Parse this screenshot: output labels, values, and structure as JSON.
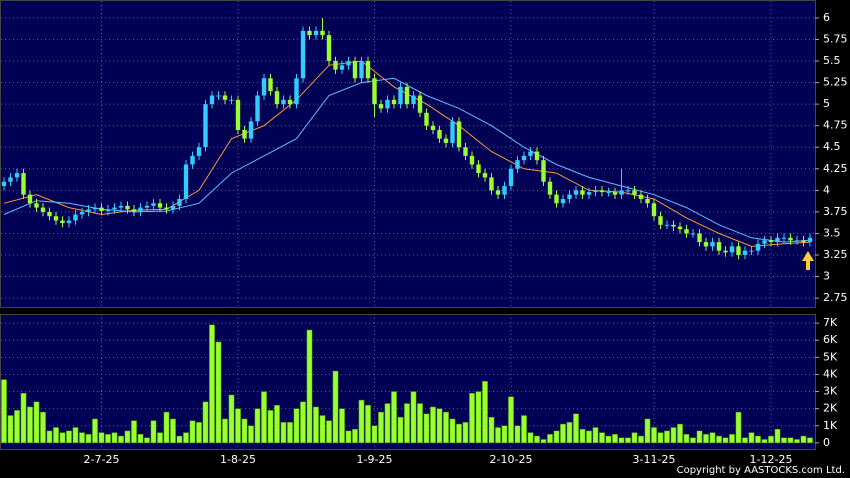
{
  "chart_data": [
    {
      "type": "candlestick",
      "up_color": "#33ccff",
      "down_color": "#99ff33",
      "grid": true,
      "ylim": [
        2.67,
        6.15
      ],
      "yticks": [
        2.75,
        3,
        3.25,
        3.5,
        3.75,
        4,
        4.25,
        4.5,
        4.75,
        5,
        5.25,
        5.5,
        5.75,
        6
      ],
      "open": [
        4.05,
        4.1,
        4.15,
        4.2,
        3.95,
        3.85,
        3.8,
        3.75,
        3.7,
        3.65,
        3.62,
        3.65,
        3.72,
        3.75,
        3.78,
        3.8,
        3.76,
        3.78,
        3.8,
        3.82,
        3.78,
        3.75,
        3.8,
        3.82,
        3.85,
        3.8,
        3.78,
        3.82,
        3.9,
        4.3,
        4.4,
        4.5,
        5.0,
        5.1,
        5.1,
        5.05,
        5.05,
        4.7,
        4.6,
        4.8,
        5.1,
        5.3,
        5.15,
        5.0,
        5.05,
        5.0,
        5.3,
        5.85,
        5.8,
        5.85,
        5.8,
        5.5,
        5.4,
        5.45,
        5.5,
        5.3,
        5.5,
        5.3,
        5.0,
        4.95,
        5.05,
        5.0,
        5.2,
        5.0,
        5.1,
        4.9,
        4.75,
        4.7,
        4.6,
        4.55,
        4.8,
        4.5,
        4.4,
        4.3,
        4.2,
        4.15,
        4.0,
        3.95,
        4.05,
        4.25,
        4.35,
        4.4,
        4.45,
        4.35,
        4.1,
        3.95,
        3.85,
        3.9,
        3.95,
        4.0,
        3.95,
        3.98,
        4.0,
        3.98,
        3.98,
        3.95,
        4.0,
        4.0,
        3.95,
        3.9,
        3.85,
        3.7,
        3.6,
        3.6,
        3.58,
        3.55,
        3.5,
        3.5,
        3.4,
        3.35,
        3.4,
        3.3,
        3.28,
        3.35,
        3.25,
        3.3,
        3.3,
        3.38,
        3.42,
        3.4,
        3.45,
        3.45,
        3.42,
        3.42,
        3.4
      ],
      "high": [
        4.15,
        4.2,
        4.25,
        4.25,
        4.0,
        3.9,
        3.85,
        3.8,
        3.75,
        3.7,
        3.7,
        3.77,
        3.8,
        3.83,
        3.85,
        3.85,
        3.83,
        3.85,
        3.87,
        3.87,
        3.83,
        3.85,
        3.87,
        3.9,
        3.9,
        3.85,
        3.87,
        3.95,
        4.35,
        4.45,
        4.55,
        5.05,
        5.15,
        5.15,
        5.15,
        5.1,
        5.1,
        4.75,
        4.85,
        5.15,
        5.35,
        5.35,
        5.2,
        5.1,
        5.1,
        5.35,
        5.9,
        5.9,
        5.9,
        6.0,
        5.85,
        5.55,
        5.5,
        5.55,
        5.55,
        5.55,
        5.55,
        5.35,
        5.05,
        5.1,
        5.1,
        5.25,
        5.25,
        5.15,
        5.15,
        4.95,
        4.8,
        4.75,
        4.65,
        4.85,
        4.85,
        4.55,
        4.45,
        4.35,
        4.25,
        4.2,
        4.05,
        4.1,
        4.3,
        4.4,
        4.45,
        4.5,
        4.5,
        4.4,
        4.15,
        4.0,
        3.95,
        4.0,
        4.05,
        4.05,
        4.03,
        4.05,
        4.05,
        4.03,
        4.03,
        4.25,
        4.05,
        4.05,
        4.0,
        3.95,
        3.9,
        3.75,
        3.65,
        3.65,
        3.63,
        3.6,
        3.55,
        3.55,
        3.45,
        3.45,
        3.45,
        3.35,
        3.4,
        3.4,
        3.35,
        3.35,
        3.43,
        3.47,
        3.47,
        3.5,
        3.5,
        3.5,
        3.47,
        3.47,
        3.5
      ],
      "low": [
        4.0,
        4.05,
        4.1,
        3.9,
        3.8,
        3.75,
        3.7,
        3.65,
        3.6,
        3.57,
        3.57,
        3.6,
        3.67,
        3.7,
        3.73,
        3.71,
        3.71,
        3.73,
        3.75,
        3.73,
        3.7,
        3.7,
        3.75,
        3.77,
        3.75,
        3.73,
        3.73,
        3.77,
        3.85,
        4.25,
        4.35,
        4.45,
        4.95,
        5.05,
        5.0,
        5.0,
        4.65,
        4.55,
        4.55,
        4.75,
        5.05,
        5.1,
        4.95,
        4.95,
        4.95,
        4.95,
        5.25,
        5.75,
        5.75,
        5.75,
        5.45,
        5.35,
        5.35,
        5.4,
        5.25,
        5.25,
        5.25,
        4.85,
        4.9,
        4.9,
        4.95,
        4.95,
        4.95,
        4.95,
        4.85,
        4.7,
        4.65,
        4.55,
        4.5,
        4.5,
        4.45,
        4.35,
        4.25,
        4.15,
        4.1,
        3.95,
        3.9,
        3.9,
        4.0,
        4.2,
        4.3,
        4.35,
        4.3,
        4.05,
        3.9,
        3.8,
        3.8,
        3.85,
        3.9,
        3.9,
        3.9,
        3.93,
        3.93,
        3.93,
        3.9,
        3.9,
        3.95,
        3.9,
        3.85,
        3.8,
        3.65,
        3.55,
        3.55,
        3.53,
        3.5,
        3.45,
        3.45,
        3.35,
        3.3,
        3.3,
        3.25,
        3.23,
        3.23,
        3.2,
        3.2,
        3.25,
        3.25,
        3.33,
        3.35,
        3.35,
        3.4,
        3.37,
        3.37,
        3.35,
        3.35
      ],
      "close": [
        4.1,
        4.15,
        4.2,
        3.95,
        3.85,
        3.8,
        3.75,
        3.7,
        3.65,
        3.62,
        3.65,
        3.72,
        3.75,
        3.78,
        3.8,
        3.76,
        3.78,
        3.8,
        3.82,
        3.78,
        3.75,
        3.8,
        3.82,
        3.85,
        3.8,
        3.78,
        3.82,
        3.9,
        4.3,
        4.4,
        4.5,
        5.0,
        5.1,
        5.1,
        5.05,
        5.05,
        4.7,
        4.6,
        4.8,
        5.1,
        5.3,
        5.15,
        5.0,
        5.05,
        5.0,
        5.3,
        5.85,
        5.8,
        5.85,
        5.8,
        5.5,
        5.4,
        5.45,
        5.5,
        5.3,
        5.5,
        5.3,
        5.0,
        4.95,
        5.05,
        5.0,
        5.2,
        5.0,
        5.1,
        4.9,
        4.75,
        4.7,
        4.6,
        4.55,
        4.8,
        4.5,
        4.4,
        4.3,
        4.2,
        4.15,
        4.0,
        3.95,
        4.05,
        4.25,
        4.35,
        4.4,
        4.45,
        4.35,
        4.1,
        3.95,
        3.85,
        3.9,
        3.95,
        4.0,
        3.95,
        3.98,
        4.0,
        3.98,
        3.98,
        3.95,
        4.0,
        4.0,
        3.95,
        3.9,
        3.85,
        3.7,
        3.6,
        3.6,
        3.58,
        3.55,
        3.5,
        3.5,
        3.4,
        3.35,
        3.4,
        3.3,
        3.28,
        3.35,
        3.25,
        3.3,
        3.3,
        3.38,
        3.42,
        3.4,
        3.45,
        3.45,
        3.42,
        3.42,
        3.4,
        3.45
      ],
      "series": [
        {
          "type": "line",
          "color": "#ff9933",
          "x": [
            0,
            5,
            10,
            15,
            20,
            25,
            30,
            35,
            40,
            45,
            50,
            55,
            60,
            65,
            70,
            75,
            80,
            85,
            90,
            95,
            100,
            105,
            110,
            115,
            120,
            124
          ],
          "values": [
            3.85,
            3.95,
            3.8,
            3.72,
            3.77,
            3.78,
            4.0,
            4.6,
            4.75,
            5.05,
            5.45,
            5.5,
            5.2,
            5.0,
            4.75,
            4.45,
            4.25,
            4.2,
            4.0,
            3.98,
            3.9,
            3.68,
            3.5,
            3.35,
            3.38,
            3.4
          ]
        },
        {
          "type": "line",
          "color": "#66bbff",
          "x": [
            0,
            5,
            10,
            15,
            20,
            25,
            30,
            35,
            40,
            45,
            50,
            55,
            60,
            65,
            70,
            75,
            80,
            85,
            90,
            95,
            100,
            105,
            110,
            115,
            120,
            124
          ],
          "values": [
            3.72,
            3.88,
            3.85,
            3.78,
            3.75,
            3.76,
            3.85,
            4.2,
            4.4,
            4.6,
            5.1,
            5.25,
            5.3,
            5.1,
            4.95,
            4.75,
            4.5,
            4.3,
            4.15,
            4.05,
            3.95,
            3.8,
            3.6,
            3.45,
            3.4,
            3.42
          ]
        }
      ]
    },
    {
      "type": "bar",
      "color": "#99ff33",
      "grid": true,
      "ylim": [
        -300,
        7300
      ],
      "yticks": [
        0,
        {
          "value": 1000,
          "label": "1K"
        },
        {
          "value": 2000,
          "label": "2K"
        },
        {
          "value": 3000,
          "label": "3K"
        },
        {
          "value": 4000,
          "label": "4K"
        },
        {
          "value": 5000,
          "label": "5K"
        },
        {
          "value": 6000,
          "label": "6K"
        },
        {
          "value": 7000,
          "label": "7K"
        }
      ],
      "categories": [
        null,
        null,
        null,
        null,
        null,
        null,
        null,
        null,
        null,
        null,
        null,
        null,
        null,
        null,
        null,
        "2-7-25",
        null,
        null,
        null,
        null,
        null,
        null,
        null,
        null,
        null,
        null,
        null,
        null,
        null,
        null,
        null,
        null,
        null,
        null,
        null,
        null,
        "1-8-25",
        null,
        null,
        null,
        null,
        null,
        null,
        null,
        null,
        null,
        null,
        null,
        null,
        null,
        null,
        null,
        null,
        null,
        null,
        null,
        null,
        "1-9-25",
        null,
        null,
        null,
        null,
        null,
        null,
        null,
        null,
        null,
        null,
        null,
        null,
        null,
        null,
        null,
        null,
        null,
        null,
        null,
        null,
        "2-10-25",
        null,
        null,
        null,
        null,
        null,
        null,
        null,
        null,
        null,
        null,
        null,
        null,
        null,
        null,
        null,
        null,
        null,
        null,
        null,
        null,
        null,
        "3-11-25",
        null,
        null,
        null,
        null,
        null,
        null,
        null,
        null,
        null,
        null,
        null,
        null,
        null,
        null,
        null,
        null,
        null,
        "1-12-25",
        null,
        null,
        null,
        null,
        null,
        null
      ],
      "values": [
        3700,
        1600,
        1900,
        2900,
        2100,
        2400,
        1800,
        700,
        900,
        600,
        700,
        900,
        600,
        500,
        1400,
        600,
        500,
        600,
        400,
        700,
        1300,
        500,
        300,
        1300,
        600,
        1800,
        1400,
        400,
        600,
        1300,
        1200,
        2400,
        6900,
        5900,
        1400,
        2800,
        2000,
        1400,
        1000,
        2000,
        3000,
        1900,
        2200,
        1200,
        1200,
        2000,
        2400,
        6600,
        2100,
        1600,
        1300,
        4200,
        2000,
        700,
        800,
        2500,
        2200,
        1000,
        1800,
        2300,
        3000,
        1500,
        2300,
        3000,
        2300,
        1700,
        2100,
        2000,
        1800,
        1400,
        1100,
        1200,
        2900,
        3000,
        3600,
        1500,
        900,
        1000,
        2700,
        1000,
        1600,
        600,
        400,
        200,
        500,
        700,
        1100,
        1200,
        1700,
        800,
        700,
        900,
        600,
        400,
        500,
        300,
        300,
        600,
        400,
        1400,
        900,
        600,
        700,
        900,
        1100,
        500,
        300,
        700,
        500,
        600,
        400,
        300,
        500,
        1800,
        300,
        600,
        400,
        200,
        400,
        800,
        300,
        300,
        200,
        400,
        300
      ]
    }
  ],
  "copyright": "Copyright by AASTOCKS.com Ltd."
}
